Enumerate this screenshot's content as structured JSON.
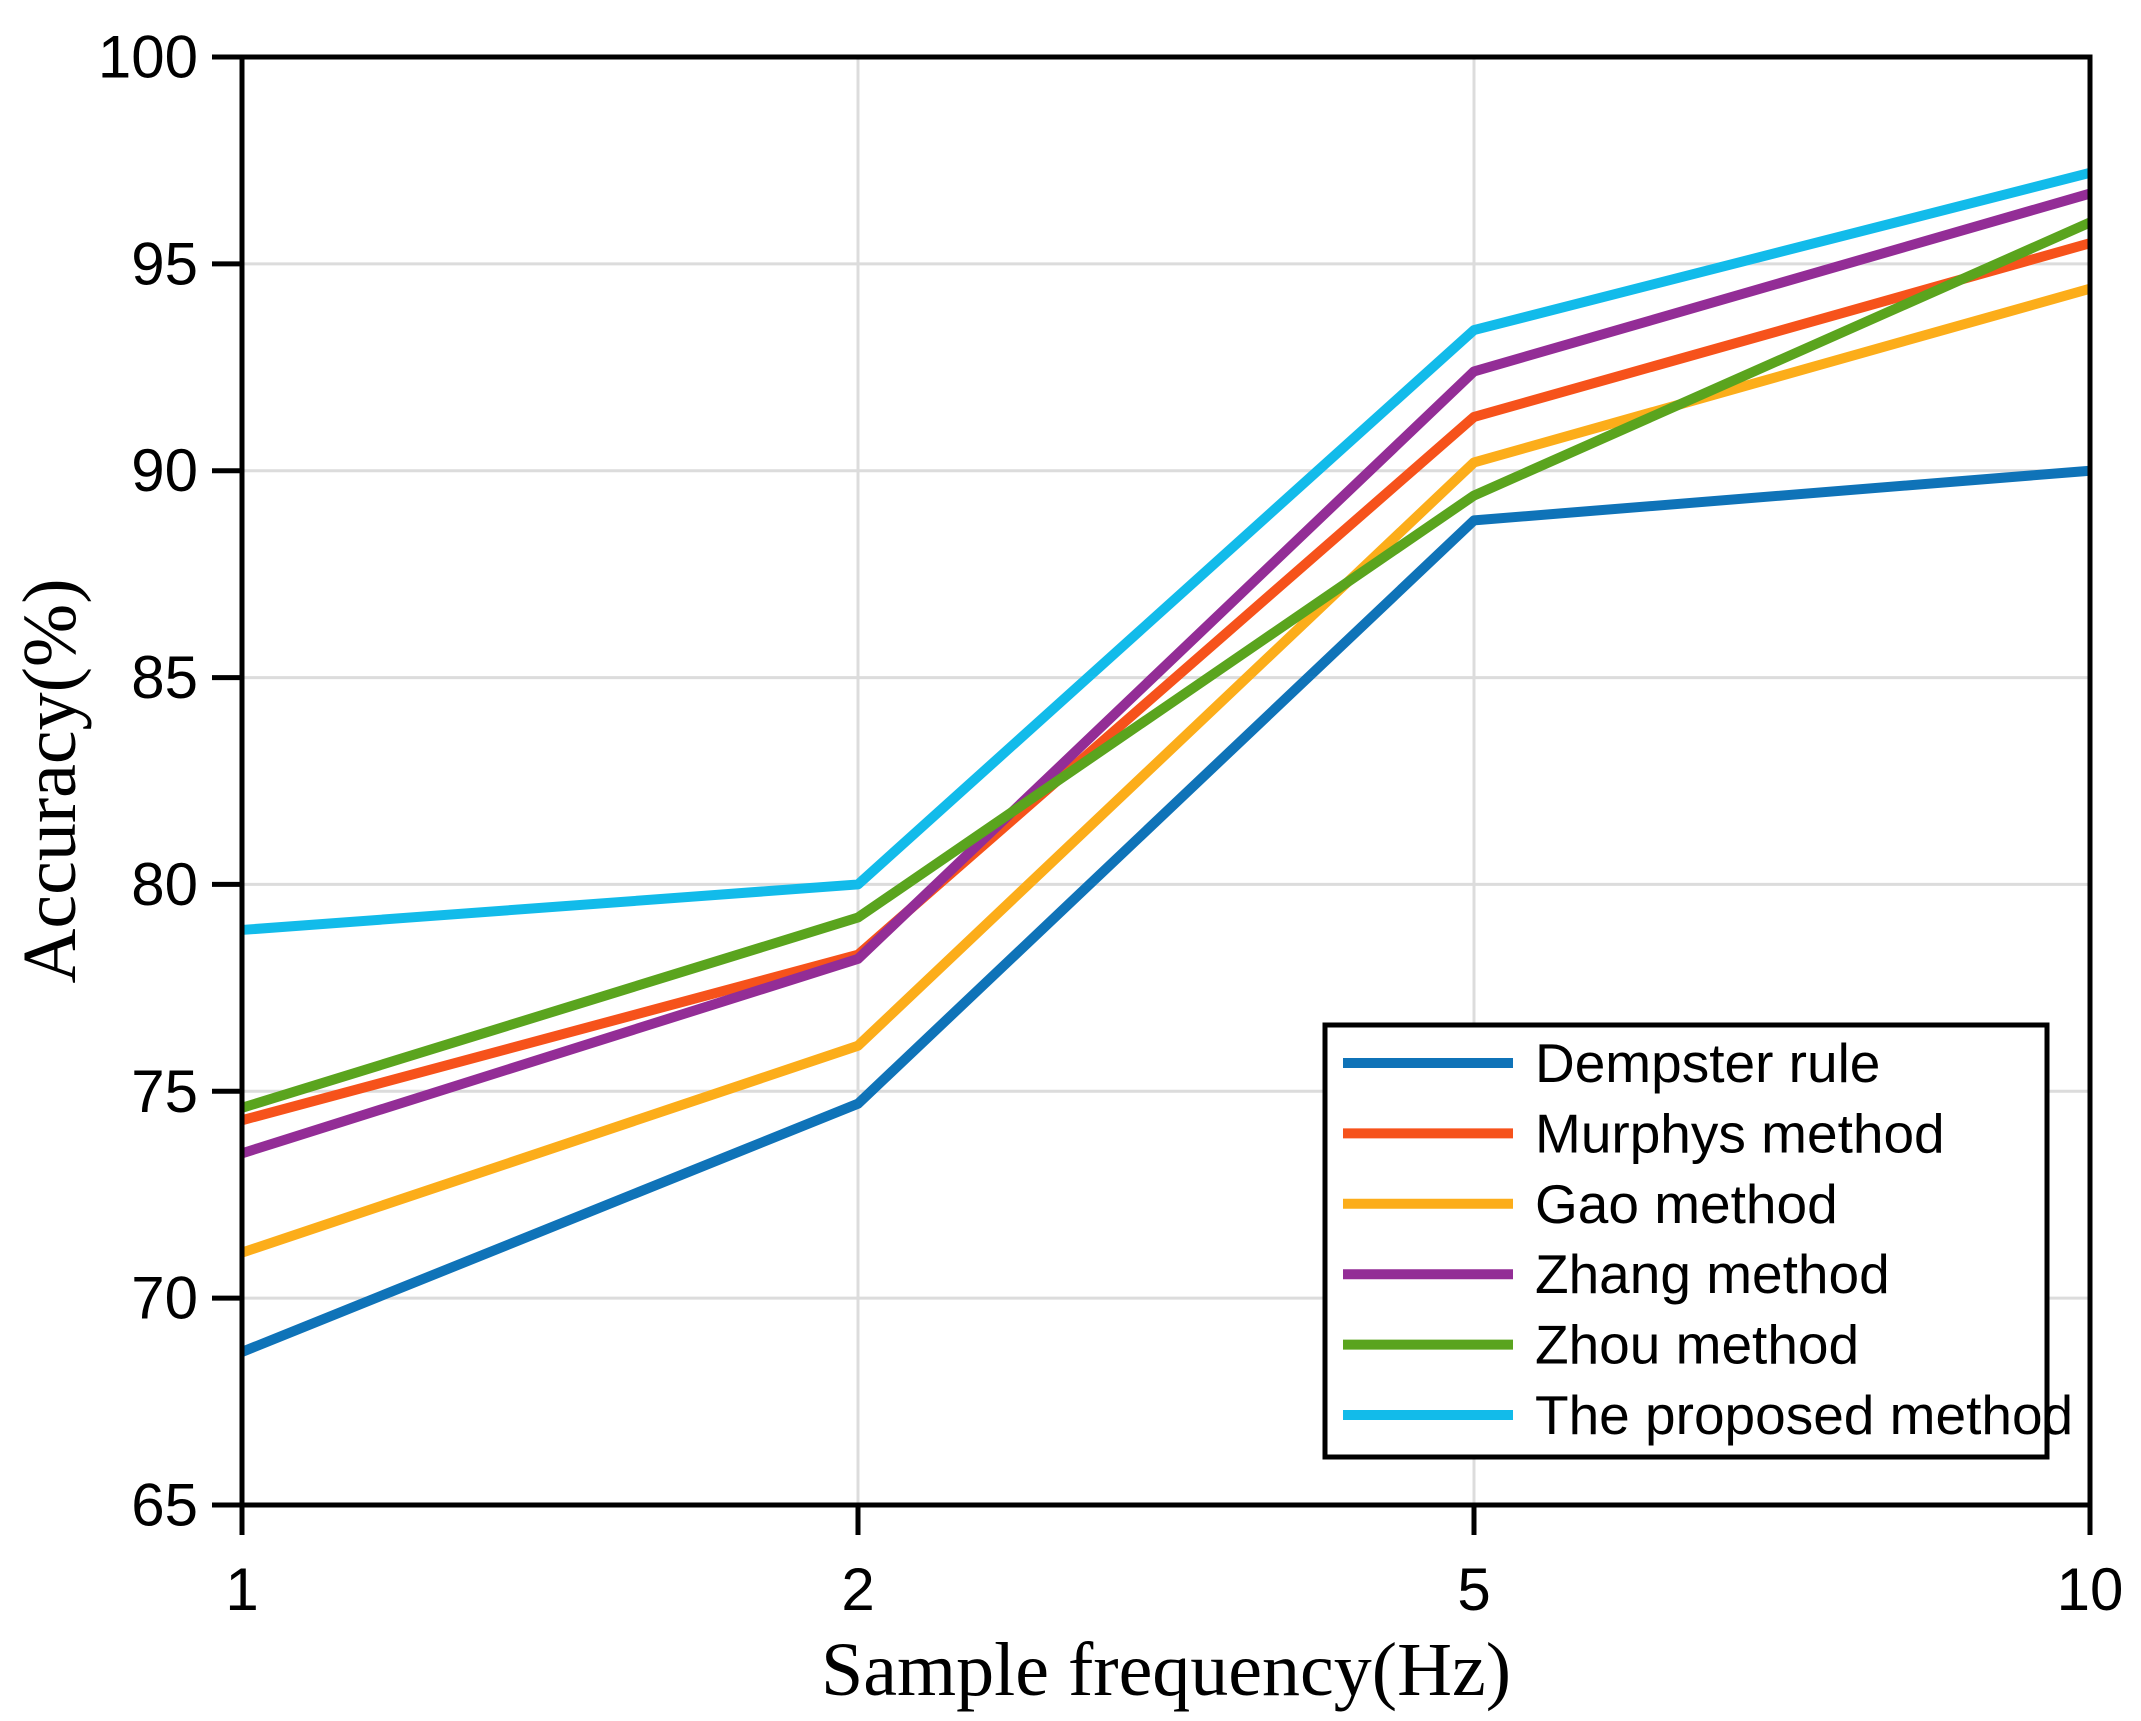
{
  "figure": {
    "background": "#ffffff",
    "frame_color": "#000000",
    "gridline_color": "#dcdcdc",
    "tick_color": "#000000"
  },
  "chart_data": {
    "type": "line",
    "title": "",
    "xlabel": "Sample frequency(Hz)",
    "ylabel": "Accuracy(%)",
    "categories": [
      "1",
      "2",
      "5",
      "10"
    ],
    "x_tick_labels": [
      "1",
      "2",
      "5",
      "10"
    ],
    "y_ticks": [
      65,
      70,
      75,
      80,
      85,
      90,
      95,
      100
    ],
    "y_tick_labels": [
      "65",
      "70",
      "75",
      "80",
      "85",
      "90",
      "95",
      "100"
    ],
    "ylim": [
      65,
      100
    ],
    "grid": true,
    "legend_position": "lower-right",
    "series": [
      {
        "name": "Dempster rule",
        "color": "#0f73b8",
        "values": [
          68.7,
          74.7,
          88.8,
          90.0
        ]
      },
      {
        "name": "Murphys method",
        "color": "#f6521b",
        "values": [
          74.3,
          78.3,
          91.3,
          95.5
        ]
      },
      {
        "name": "Gao method",
        "color": "#fcad1a",
        "values": [
          71.1,
          76.1,
          90.2,
          94.4
        ]
      },
      {
        "name": "Zhang method",
        "color": "#932d96",
        "values": [
          73.5,
          78.2,
          92.4,
          96.7
        ]
      },
      {
        "name": "Zhou method",
        "color": "#5aa41e",
        "values": [
          74.6,
          79.2,
          89.4,
          96.0
        ]
      },
      {
        "name": "The proposed method",
        "color": "#12bbea",
        "values": [
          78.9,
          80.0,
          93.4,
          97.2
        ]
      }
    ]
  }
}
